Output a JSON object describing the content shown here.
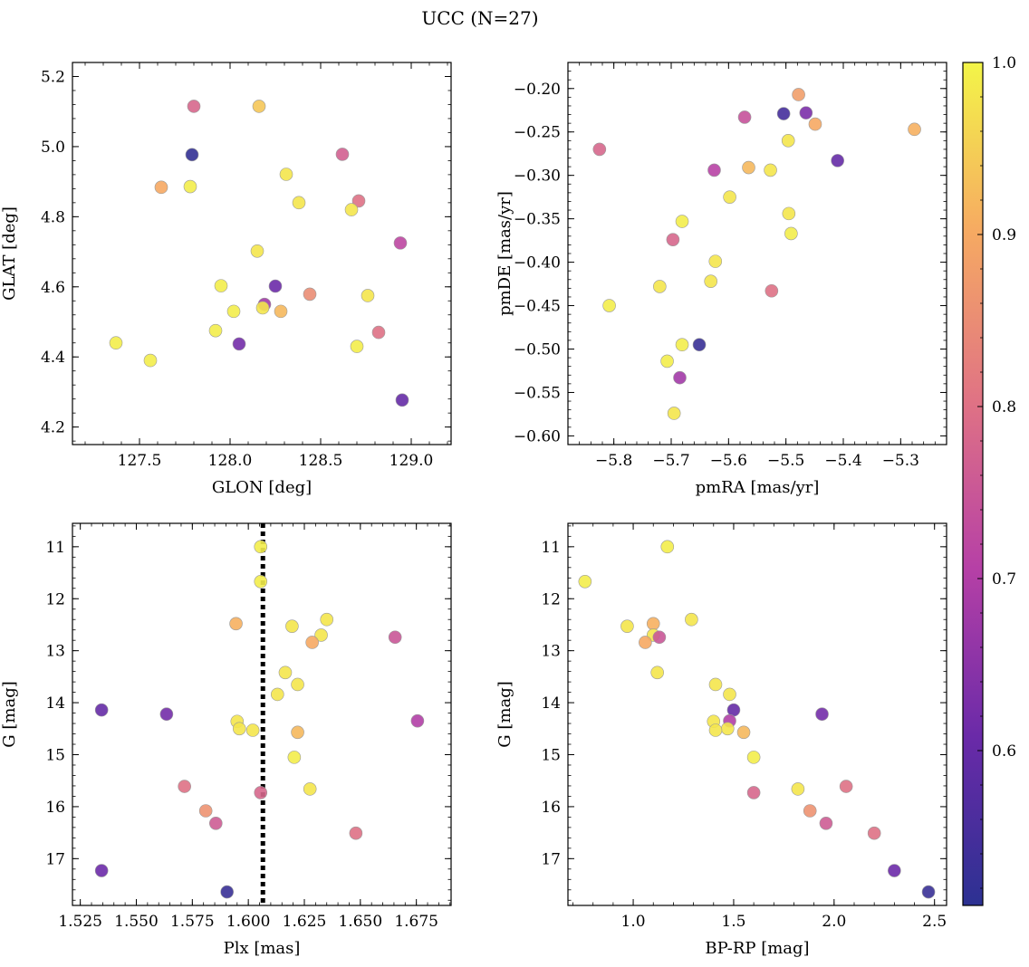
{
  "figure_title": "UCC (N=27)",
  "colorbar": {
    "min": 0.51,
    "max": 1.0,
    "ticks": [
      0.6,
      0.7,
      0.8,
      0.9,
      1.0
    ],
    "tick_labels": [
      "0.6",
      "0.7",
      "0.8",
      "0.9",
      "1.0"
    ],
    "colormap": "plasma"
  },
  "chart_data": [
    {
      "type": "scatter",
      "xlabel": "GLON [deg]",
      "ylabel": "GLAT [deg]",
      "xlim": [
        127.13,
        129.22
      ],
      "ylim": [
        4.15,
        5.24
      ],
      "x_ticks": [
        127.5,
        128.0,
        128.5,
        129.0
      ],
      "x_tick_labels": [
        "127.5",
        "128.0",
        "128.5",
        "129.0"
      ],
      "y_ticks": [
        4.2,
        4.4,
        4.6,
        4.8,
        5.0,
        5.2
      ],
      "y_tick_labels": [
        "4.2",
        "4.4",
        "4.6",
        "4.8",
        "5.0",
        "5.2"
      ],
      "y_inverted": false,
      "points": [
        {
          "x": 127.8,
          "y": 5.115,
          "p": 0.78
        },
        {
          "x": 128.16,
          "y": 5.115,
          "p": 0.94
        },
        {
          "x": 127.79,
          "y": 4.977,
          "p": 0.52
        },
        {
          "x": 128.62,
          "y": 4.978,
          "p": 0.77
        },
        {
          "x": 127.62,
          "y": 4.884,
          "p": 0.9
        },
        {
          "x": 127.78,
          "y": 4.886,
          "p": 0.99
        },
        {
          "x": 128.31,
          "y": 4.921,
          "p": 0.98
        },
        {
          "x": 128.38,
          "y": 4.84,
          "p": 0.98
        },
        {
          "x": 128.71,
          "y": 4.845,
          "p": 0.8
        },
        {
          "x": 128.67,
          "y": 4.82,
          "p": 0.98
        },
        {
          "x": 128.94,
          "y": 4.725,
          "p": 0.72
        },
        {
          "x": 128.15,
          "y": 4.702,
          "p": 0.98
        },
        {
          "x": 127.95,
          "y": 4.603,
          "p": 0.99
        },
        {
          "x": 128.25,
          "y": 4.602,
          "p": 0.61
        },
        {
          "x": 128.44,
          "y": 4.579,
          "p": 0.85
        },
        {
          "x": 128.76,
          "y": 4.575,
          "p": 0.98
        },
        {
          "x": 128.19,
          "y": 4.55,
          "p": 0.68
        },
        {
          "x": 128.18,
          "y": 4.54,
          "p": 0.98
        },
        {
          "x": 128.02,
          "y": 4.53,
          "p": 0.99
        },
        {
          "x": 128.28,
          "y": 4.53,
          "p": 0.92
        },
        {
          "x": 127.92,
          "y": 4.475,
          "p": 0.99
        },
        {
          "x": 128.82,
          "y": 4.47,
          "p": 0.8
        },
        {
          "x": 127.37,
          "y": 4.44,
          "p": 0.99
        },
        {
          "x": 128.05,
          "y": 4.437,
          "p": 0.62
        },
        {
          "x": 128.7,
          "y": 4.43,
          "p": 0.99
        },
        {
          "x": 127.56,
          "y": 4.39,
          "p": 0.99
        },
        {
          "x": 128.95,
          "y": 4.277,
          "p": 0.6
        }
      ]
    },
    {
      "type": "scatter",
      "xlabel": "pmRA [mas/yr]",
      "ylabel": "pmDE [mas/yr]",
      "xlim": [
        -5.88,
        -5.22
      ],
      "ylim": [
        -0.61,
        -0.17
      ],
      "x_ticks": [
        -5.8,
        -5.7,
        -5.6,
        -5.5,
        -5.4,
        -5.3
      ],
      "x_tick_labels": [
        "−5.8",
        "−5.7",
        "−5.6",
        "−5.5",
        "−5.4",
        "−5.3"
      ],
      "y_ticks": [
        -0.6,
        -0.55,
        -0.5,
        -0.45,
        -0.4,
        -0.35,
        -0.3,
        -0.25,
        -0.2
      ],
      "y_tick_labels": [
        "−0.60",
        "−0.55",
        "−0.50",
        "−0.45",
        "−0.40",
        "−0.35",
        "−0.30",
        "−0.25",
        "−0.20"
      ],
      "y_inverted": false,
      "points": [
        {
          "x": -5.478,
          "y": -0.207,
          "p": 0.88
        },
        {
          "x": -5.504,
          "y": -0.229,
          "p": 0.55
        },
        {
          "x": -5.465,
          "y": -0.228,
          "p": 0.63
        },
        {
          "x": -5.572,
          "y": -0.233,
          "p": 0.74
        },
        {
          "x": -5.449,
          "y": -0.241,
          "p": 0.9
        },
        {
          "x": -5.276,
          "y": -0.247,
          "p": 0.91
        },
        {
          "x": -5.496,
          "y": -0.26,
          "p": 0.98
        },
        {
          "x": -5.825,
          "y": -0.27,
          "p": 0.78
        },
        {
          "x": -5.41,
          "y": -0.283,
          "p": 0.6
        },
        {
          "x": -5.625,
          "y": -0.294,
          "p": 0.71
        },
        {
          "x": -5.565,
          "y": -0.291,
          "p": 0.92
        },
        {
          "x": -5.527,
          "y": -0.294,
          "p": 0.98
        },
        {
          "x": -5.598,
          "y": -0.325,
          "p": 0.98
        },
        {
          "x": -5.495,
          "y": -0.344,
          "p": 0.98
        },
        {
          "x": -5.681,
          "y": -0.353,
          "p": 0.99
        },
        {
          "x": -5.491,
          "y": -0.367,
          "p": 0.99
        },
        {
          "x": -5.697,
          "y": -0.374,
          "p": 0.78
        },
        {
          "x": -5.623,
          "y": -0.399,
          "p": 0.98
        },
        {
          "x": -5.631,
          "y": -0.422,
          "p": 0.98
        },
        {
          "x": -5.72,
          "y": -0.428,
          "p": 0.98
        },
        {
          "x": -5.525,
          "y": -0.433,
          "p": 0.8
        },
        {
          "x": -5.808,
          "y": -0.45,
          "p": 0.99
        },
        {
          "x": -5.681,
          "y": -0.495,
          "p": 0.99
        },
        {
          "x": -5.651,
          "y": -0.495,
          "p": 0.53
        },
        {
          "x": -5.707,
          "y": -0.514,
          "p": 0.99
        },
        {
          "x": -5.685,
          "y": -0.533,
          "p": 0.68
        },
        {
          "x": -5.695,
          "y": -0.574,
          "p": 0.98
        }
      ]
    },
    {
      "type": "scatter",
      "xlabel": "Plx [mas]",
      "ylabel": "G [mag]",
      "xlim": [
        1.5215,
        1.6905
      ],
      "ylim": [
        10.55,
        17.9
      ],
      "x_ticks": [
        1.525,
        1.55,
        1.575,
        1.6,
        1.625,
        1.65,
        1.675
      ],
      "x_tick_labels": [
        "1.525",
        "1.550",
        "1.575",
        "1.600",
        "1.625",
        "1.650",
        "1.675"
      ],
      "y_ticks": [
        11,
        12,
        13,
        14,
        15,
        16,
        17
      ],
      "y_tick_labels": [
        "11",
        "12",
        "13",
        "14",
        "15",
        "16",
        "17"
      ],
      "y_inverted": true,
      "vline": 1.6065,
      "points": [
        {
          "x": 1.6055,
          "y": 11.0,
          "p": 0.99
        },
        {
          "x": 1.6055,
          "y": 11.67,
          "p": 0.99
        },
        {
          "x": 1.5945,
          "y": 12.48,
          "p": 0.91
        },
        {
          "x": 1.635,
          "y": 12.4,
          "p": 0.98
        },
        {
          "x": 1.6195,
          "y": 12.53,
          "p": 0.98
        },
        {
          "x": 1.6325,
          "y": 12.7,
          "p": 0.98
        },
        {
          "x": 1.6285,
          "y": 12.84,
          "p": 0.9
        },
        {
          "x": 1.6655,
          "y": 12.74,
          "p": 0.75
        },
        {
          "x": 1.6165,
          "y": 13.42,
          "p": 0.98
        },
        {
          "x": 1.622,
          "y": 13.65,
          "p": 0.98
        },
        {
          "x": 1.613,
          "y": 13.84,
          "p": 0.98
        },
        {
          "x": 1.5345,
          "y": 14.14,
          "p": 0.6
        },
        {
          "x": 1.5635,
          "y": 14.22,
          "p": 0.62
        },
        {
          "x": 1.595,
          "y": 14.36,
          "p": 0.98
        },
        {
          "x": 1.6755,
          "y": 14.35,
          "p": 0.7
        },
        {
          "x": 1.596,
          "y": 14.5,
          "p": 0.98
        },
        {
          "x": 1.602,
          "y": 14.53,
          "p": 0.98
        },
        {
          "x": 1.622,
          "y": 14.57,
          "p": 0.92
        },
        {
          "x": 1.6205,
          "y": 15.05,
          "p": 0.99
        },
        {
          "x": 1.5715,
          "y": 15.61,
          "p": 0.8
        },
        {
          "x": 1.6275,
          "y": 15.66,
          "p": 0.98
        },
        {
          "x": 1.6055,
          "y": 15.73,
          "p": 0.78
        },
        {
          "x": 1.581,
          "y": 16.08,
          "p": 0.86
        },
        {
          "x": 1.5855,
          "y": 16.32,
          "p": 0.76
        },
        {
          "x": 1.648,
          "y": 16.51,
          "p": 0.8
        },
        {
          "x": 1.5345,
          "y": 17.23,
          "p": 0.61
        },
        {
          "x": 1.5905,
          "y": 17.64,
          "p": 0.53
        }
      ]
    },
    {
      "type": "scatter",
      "xlabel": "BP-RP [mag]",
      "ylabel": "G [mag]",
      "xlim": [
        0.675,
        2.56
      ],
      "ylim": [
        10.55,
        17.9
      ],
      "x_ticks": [
        1.0,
        1.5,
        2.0,
        2.5
      ],
      "x_tick_labels": [
        "1.0",
        "1.5",
        "2.0",
        "2.5"
      ],
      "y_ticks": [
        11,
        12,
        13,
        14,
        15,
        16,
        17
      ],
      "y_tick_labels": [
        "11",
        "12",
        "13",
        "14",
        "15",
        "16",
        "17"
      ],
      "y_inverted": true,
      "points": [
        {
          "x": 1.17,
          "y": 11.0,
          "p": 0.99
        },
        {
          "x": 0.76,
          "y": 11.67,
          "p": 0.99
        },
        {
          "x": 1.1,
          "y": 12.48,
          "p": 0.91
        },
        {
          "x": 1.29,
          "y": 12.4,
          "p": 0.98
        },
        {
          "x": 0.97,
          "y": 12.53,
          "p": 0.98
        },
        {
          "x": 1.1,
          "y": 12.7,
          "p": 0.98
        },
        {
          "x": 1.06,
          "y": 12.84,
          "p": 0.9
        },
        {
          "x": 1.13,
          "y": 12.74,
          "p": 0.75
        },
        {
          "x": 1.12,
          "y": 13.42,
          "p": 0.98
        },
        {
          "x": 1.41,
          "y": 13.65,
          "p": 0.98
        },
        {
          "x": 1.48,
          "y": 13.84,
          "p": 0.98
        },
        {
          "x": 1.5,
          "y": 14.14,
          "p": 0.6
        },
        {
          "x": 1.94,
          "y": 14.22,
          "p": 0.62
        },
        {
          "x": 1.4,
          "y": 14.36,
          "p": 0.98
        },
        {
          "x": 1.48,
          "y": 14.35,
          "p": 0.7
        },
        {
          "x": 1.47,
          "y": 14.5,
          "p": 0.98
        },
        {
          "x": 1.41,
          "y": 14.53,
          "p": 0.98
        },
        {
          "x": 1.55,
          "y": 14.57,
          "p": 0.92
        },
        {
          "x": 1.6,
          "y": 15.05,
          "p": 0.99
        },
        {
          "x": 2.06,
          "y": 15.61,
          "p": 0.8
        },
        {
          "x": 1.82,
          "y": 15.66,
          "p": 0.98
        },
        {
          "x": 1.6,
          "y": 15.73,
          "p": 0.78
        },
        {
          "x": 1.88,
          "y": 16.08,
          "p": 0.86
        },
        {
          "x": 1.96,
          "y": 16.32,
          "p": 0.76
        },
        {
          "x": 2.2,
          "y": 16.51,
          "p": 0.8
        },
        {
          "x": 2.3,
          "y": 17.23,
          "p": 0.61
        },
        {
          "x": 2.47,
          "y": 17.64,
          "p": 0.53
        }
      ]
    }
  ]
}
